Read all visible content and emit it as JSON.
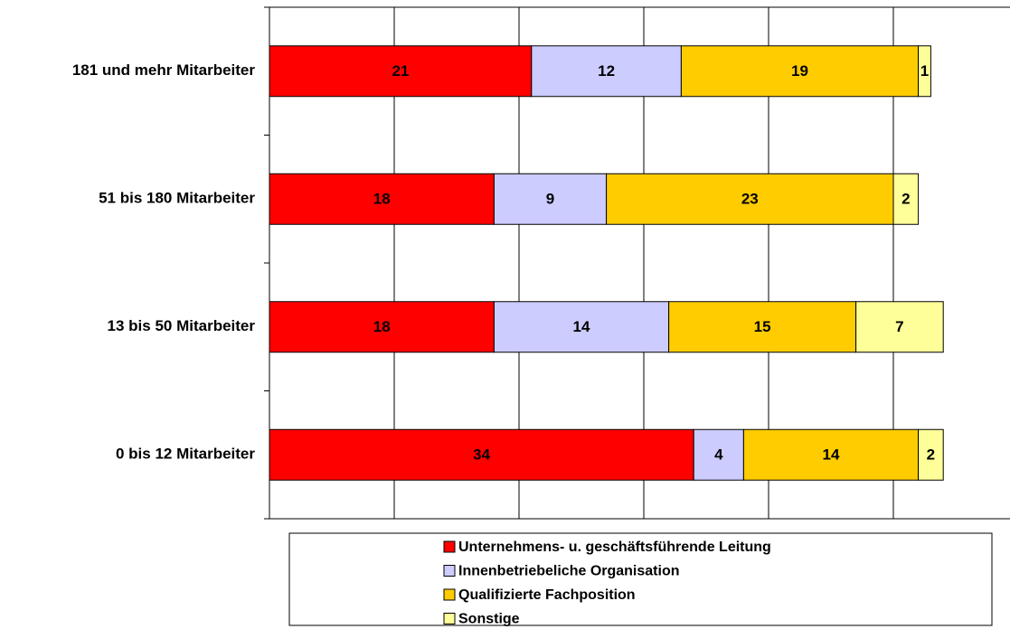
{
  "chart_data": {
    "type": "stacked-bar-horizontal",
    "categories": [
      "181 und mehr Mitarbeiter",
      "51 bis 180 Mitarbeiter",
      "13 bis 50 Mitarbeiter",
      "0 bis 12 Mitarbeiter"
    ],
    "series": [
      {
        "name": "Unternehmens- u. geschäftsführende Leitung",
        "color": "#ff0000",
        "values": [
          21,
          18,
          18,
          34
        ]
      },
      {
        "name": "Innenbetriebeliche Organisation",
        "color": "#ccccff",
        "values": [
          12,
          9,
          14,
          4
        ]
      },
      {
        "name": "Qualifizierte Fachposition",
        "color": "#ffcc00",
        "values": [
          19,
          23,
          15,
          14
        ]
      },
      {
        "name": "Sonstige",
        "color": "#ffff99",
        "values": [
          1,
          2,
          7,
          2
        ]
      }
    ],
    "xlim": [
      0,
      60
    ],
    "xticks": [
      0,
      10,
      20,
      30,
      40,
      50,
      60
    ],
    "grid": true
  }
}
